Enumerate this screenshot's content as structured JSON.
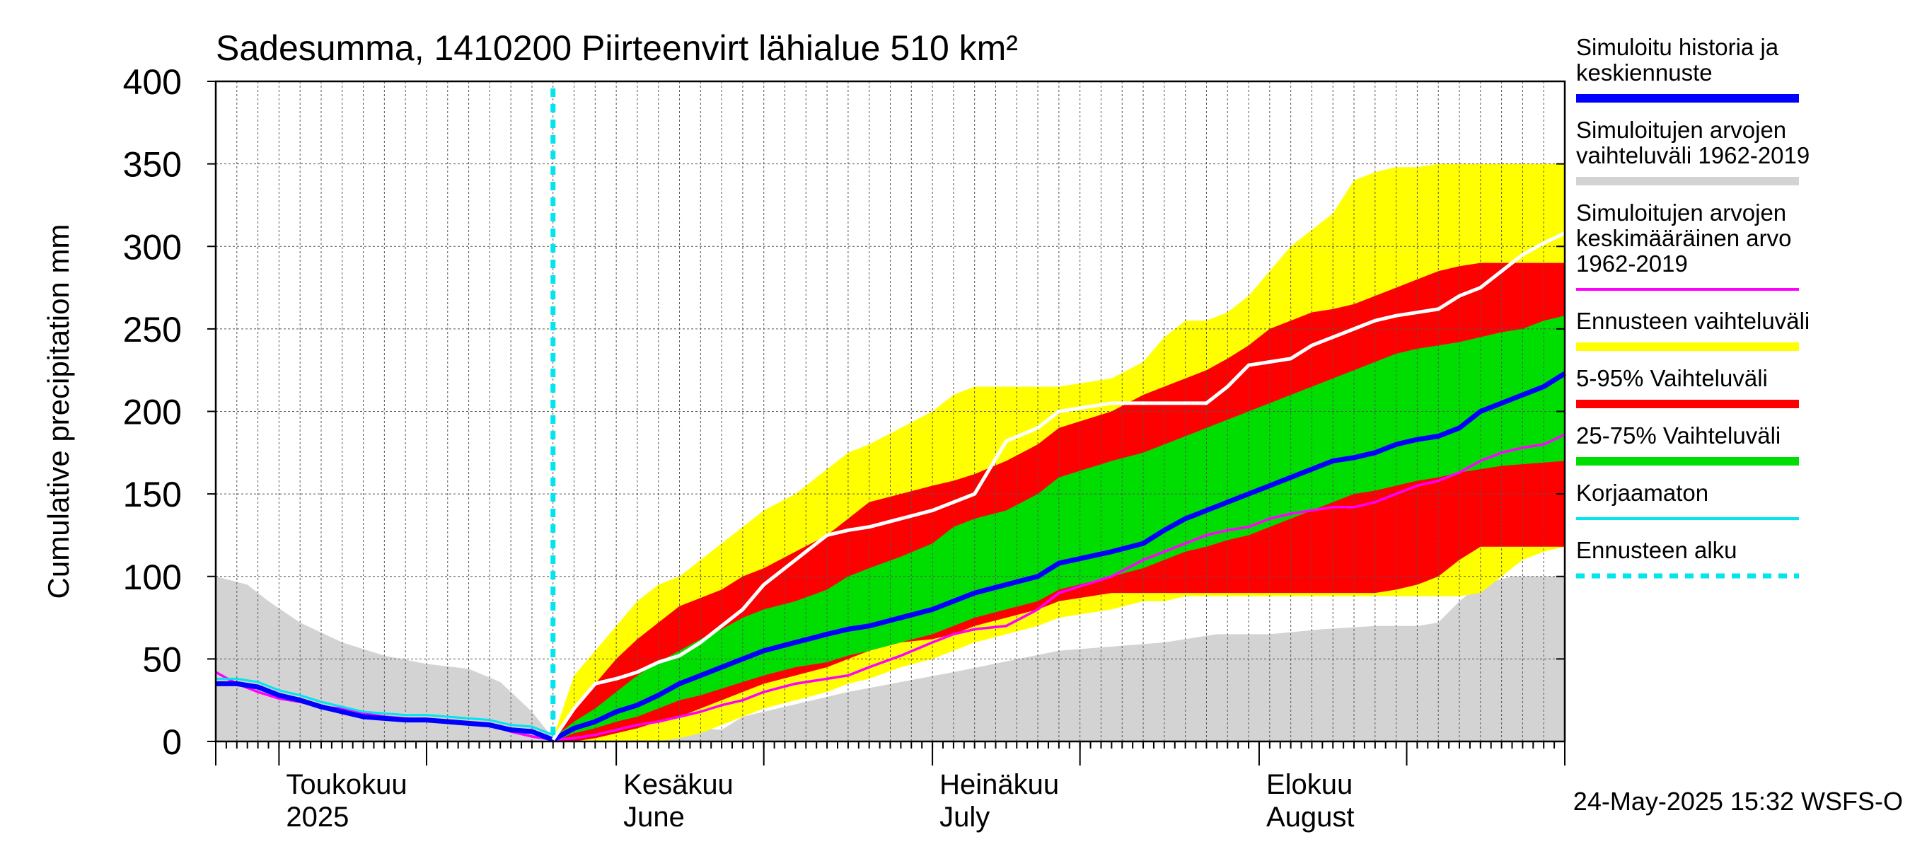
{
  "chart_data": {
    "type": "area",
    "title": "Sadesumma, 1410200 Piirteenvirt lähialue 510 km²",
    "ylabel": "Cumulative precipitation   mm",
    "xlabel": "",
    "ylim": [
      0,
      400
    ],
    "yticks": [
      0,
      50,
      100,
      150,
      200,
      250,
      300,
      350,
      400
    ],
    "x_range_days": [
      0,
      128
    ],
    "x_axis_note": "day 0 = 2025-04-25, day 128 = 2025-08-31",
    "forecast_start_day": 32,
    "month_labels": [
      {
        "day": 6,
        "fi": "Toukokuu",
        "en": "2025"
      },
      {
        "day": 38,
        "fi": "Kesäkuu",
        "en": "June"
      },
      {
        "day": 68,
        "fi": "Heinäkuu",
        "en": "July"
      },
      {
        "day": 99,
        "fi": "Elokuu",
        "en": "August"
      }
    ],
    "bands": [
      {
        "name": "Simuloitujen arvojen vaihteluväli 1962-2019",
        "color": "#d3d3d3",
        "x": [
          0,
          3,
          5,
          8,
          12,
          16,
          20,
          24,
          27,
          30,
          32,
          34,
          36,
          38,
          41,
          44,
          46,
          48,
          50,
          60,
          70,
          80,
          90,
          95,
          100,
          105,
          110,
          114,
          116,
          118,
          120,
          123,
          128
        ],
        "upper": [
          100,
          95,
          85,
          72,
          60,
          52,
          47,
          44,
          36,
          18,
          2,
          10,
          20,
          25,
          18,
          12,
          8,
          7,
          15,
          30,
          42,
          55,
          60,
          65,
          65,
          68,
          70,
          70,
          72,
          85,
          95,
          100,
          100
        ],
        "lower": [
          0,
          0,
          0,
          0,
          0,
          0,
          0,
          0,
          0,
          0,
          0,
          0,
          0,
          0,
          0,
          0,
          0,
          0,
          0,
          0,
          0,
          0,
          0,
          0,
          0,
          0,
          0,
          0,
          0,
          0,
          0,
          0,
          0
        ]
      },
      {
        "name": "Ennusteen vaihteluväli",
        "color": "#ffff00",
        "x": [
          32,
          34,
          36,
          38,
          40,
          42,
          44,
          46,
          48,
          50,
          52,
          55,
          58,
          60,
          62,
          65,
          68,
          70,
          72,
          75,
          78,
          80,
          85,
          88,
          90,
          92,
          94,
          96,
          98,
          100,
          102,
          104,
          106,
          108,
          110,
          112,
          114,
          116,
          118,
          120,
          122,
          124,
          126,
          128
        ],
        "upper": [
          2,
          40,
          55,
          70,
          85,
          95,
          100,
          110,
          120,
          130,
          140,
          150,
          165,
          175,
          180,
          190,
          200,
          210,
          215,
          215,
          215,
          215,
          220,
          230,
          245,
          255,
          255,
          260,
          270,
          285,
          300,
          310,
          320,
          340,
          345,
          348,
          348,
          350,
          350,
          350,
          350,
          350,
          350,
          350
        ],
        "lower": [
          0,
          0,
          0,
          0,
          0,
          0,
          2,
          5,
          10,
          15,
          20,
          25,
          30,
          35,
          38,
          45,
          50,
          55,
          60,
          65,
          70,
          75,
          80,
          85,
          85,
          88,
          88,
          88,
          88,
          88,
          88,
          88,
          88,
          88,
          88,
          88,
          88,
          88,
          88,
          90,
          100,
          110,
          115,
          118
        ]
      },
      {
        "name": "5-95% Vaihteluväli",
        "color": "#ff0000",
        "x": [
          32,
          34,
          36,
          38,
          40,
          42,
          44,
          46,
          48,
          50,
          52,
          55,
          58,
          60,
          62,
          65,
          68,
          70,
          72,
          75,
          78,
          80,
          85,
          88,
          90,
          92,
          94,
          96,
          98,
          100,
          102,
          104,
          106,
          108,
          110,
          112,
          114,
          116,
          118,
          120,
          122,
          124,
          126,
          128
        ],
        "upper": [
          2,
          20,
          35,
          50,
          62,
          72,
          82,
          87,
          92,
          100,
          105,
          115,
          125,
          135,
          145,
          150,
          155,
          158,
          162,
          170,
          180,
          190,
          200,
          210,
          215,
          220,
          225,
          232,
          240,
          250,
          255,
          260,
          262,
          265,
          270,
          275,
          280,
          285,
          288,
          290,
          290,
          290,
          290,
          290
        ],
        "lower": [
          0,
          0,
          2,
          5,
          8,
          12,
          15,
          20,
          25,
          30,
          35,
          40,
          45,
          50,
          55,
          60,
          62,
          65,
          70,
          75,
          80,
          85,
          90,
          90,
          90,
          90,
          90,
          90,
          90,
          90,
          90,
          90,
          90,
          90,
          90,
          92,
          95,
          100,
          110,
          118,
          118,
          118,
          118,
          118
        ]
      },
      {
        "name": "25-75% Vaihteluväli",
        "color": "#00dd00",
        "x": [
          32,
          34,
          36,
          38,
          40,
          42,
          44,
          46,
          48,
          50,
          52,
          55,
          58,
          60,
          62,
          65,
          68,
          70,
          72,
          75,
          78,
          80,
          85,
          88,
          90,
          92,
          94,
          96,
          98,
          100,
          102,
          104,
          106,
          108,
          110,
          112,
          114,
          116,
          118,
          120,
          122,
          124,
          126,
          128
        ],
        "upper": [
          2,
          12,
          20,
          30,
          40,
          48,
          55,
          62,
          68,
          75,
          80,
          85,
          92,
          100,
          105,
          112,
          120,
          130,
          135,
          140,
          150,
          160,
          170,
          175,
          180,
          185,
          190,
          195,
          200,
          205,
          210,
          215,
          220,
          225,
          230,
          235,
          238,
          240,
          242,
          245,
          248,
          250,
          255,
          258
        ],
        "lower": [
          0,
          5,
          8,
          12,
          15,
          20,
          25,
          28,
          32,
          36,
          40,
          45,
          48,
          52,
          55,
          60,
          65,
          70,
          75,
          80,
          85,
          92,
          100,
          105,
          110,
          115,
          118,
          122,
          125,
          130,
          135,
          140,
          145,
          150,
          152,
          155,
          158,
          160,
          163,
          165,
          167,
          168,
          169,
          170
        ]
      }
    ],
    "series": [
      {
        "name": "Simuloitujen arvojen keskimääräinen arvo 1962-2019",
        "color": "#ff00ff",
        "width": 3.5,
        "x": [
          0,
          2,
          4,
          6,
          8,
          10,
          12,
          14,
          16,
          18,
          20,
          22,
          24,
          26,
          28,
          30,
          32,
          34,
          36,
          38,
          40,
          42,
          44,
          46,
          48,
          50,
          52,
          55,
          58,
          60,
          62,
          65,
          68,
          70,
          72,
          75,
          78,
          80,
          85,
          88,
          90,
          92,
          94,
          96,
          98,
          100,
          102,
          104,
          106,
          108,
          110,
          112,
          114,
          116,
          118,
          120,
          122,
          124,
          126,
          128
        ],
        "y": [
          42,
          35,
          30,
          26,
          24,
          21,
          20,
          17,
          15,
          14,
          13,
          12,
          11,
          10,
          6,
          3,
          1,
          2,
          4,
          7,
          10,
          12,
          15,
          18,
          22,
          25,
          30,
          35,
          38,
          40,
          45,
          52,
          60,
          65,
          68,
          70,
          80,
          90,
          100,
          110,
          115,
          120,
          125,
          128,
          130,
          135,
          138,
          140,
          142,
          142,
          145,
          150,
          155,
          158,
          163,
          170,
          175,
          178,
          180,
          186
        ]
      },
      {
        "name": "Simuloitu historia ja keskiennuste",
        "color": "#0000ff",
        "width": 7,
        "x": [
          0,
          2,
          4,
          6,
          8,
          10,
          12,
          14,
          16,
          18,
          20,
          22,
          24,
          26,
          28,
          30,
          32,
          34,
          36,
          38,
          40,
          42,
          44,
          46,
          48,
          50,
          52,
          55,
          58,
          60,
          62,
          65,
          68,
          70,
          72,
          75,
          78,
          80,
          85,
          88,
          90,
          92,
          94,
          96,
          98,
          100,
          102,
          104,
          106,
          108,
          110,
          112,
          114,
          116,
          118,
          120,
          122,
          124,
          126,
          128
        ],
        "y": [
          35,
          35,
          33,
          28,
          25,
          21,
          18,
          15,
          14,
          13,
          13,
          12,
          11,
          10,
          7,
          6,
          1,
          8,
          12,
          18,
          22,
          28,
          35,
          40,
          45,
          50,
          55,
          60,
          65,
          68,
          70,
          75,
          80,
          85,
          90,
          95,
          100,
          108,
          115,
          120,
          128,
          135,
          140,
          145,
          150,
          155,
          160,
          165,
          170,
          172,
          175,
          180,
          183,
          185,
          190,
          200,
          205,
          210,
          215,
          223
        ]
      },
      {
        "name": "Korjaamaton",
        "color": "#00e5ee",
        "width": 3,
        "x": [
          0,
          2,
          4,
          6,
          8,
          10,
          12,
          14,
          16,
          18,
          20,
          22,
          24,
          26,
          28,
          30,
          32
        ],
        "y": [
          38,
          38,
          36,
          31,
          28,
          24,
          21,
          18,
          17,
          16,
          16,
          15,
          14,
          13,
          10,
          9,
          4
        ]
      },
      {
        "name": "Simuloitu historia (valkoinen)",
        "color": "#ffffff",
        "width": 5,
        "legend": false,
        "x": [
          32,
          34,
          36,
          38,
          40,
          42,
          44,
          46,
          48,
          50,
          52,
          55,
          58,
          60,
          62,
          65,
          68,
          70,
          72,
          75,
          78,
          80,
          85,
          88,
          90,
          92,
          94,
          96,
          98,
          100,
          102,
          104,
          106,
          108,
          110,
          112,
          114,
          116,
          118,
          120,
          122,
          124,
          126,
          128
        ],
        "y": [
          1,
          20,
          35,
          38,
          42,
          48,
          52,
          60,
          70,
          80,
          95,
          110,
          125,
          128,
          130,
          135,
          140,
          145,
          150,
          182,
          190,
          200,
          205,
          205,
          205,
          205,
          205,
          215,
          228,
          230,
          232,
          240,
          245,
          250,
          255,
          258,
          260,
          262,
          270,
          275,
          285,
          295,
          302,
          308
        ]
      }
    ],
    "legend": [
      {
        "lines": [
          "Simuloitu historia ja",
          "keskiennuste"
        ],
        "color": "#0000ff",
        "style": "solid"
      },
      {
        "lines": [
          "Simuloitujen arvojen",
          "vaihteluväli 1962-2019"
        ],
        "color": "#d3d3d3",
        "style": "solid"
      },
      {
        "lines": [
          "Simuloitujen arvojen",
          "keskimääräinen arvo",
          "   1962-2019"
        ],
        "color": "#ff00ff",
        "style": "thin"
      },
      {
        "lines": [
          "Ennusteen vaihteluväli"
        ],
        "color": "#ffff00",
        "style": "solid"
      },
      {
        "lines": [
          "5-95% Vaihteluväli"
        ],
        "color": "#ff0000",
        "style": "solid"
      },
      {
        "lines": [
          "25-75% Vaihteluväli"
        ],
        "color": "#00dd00",
        "style": "solid"
      },
      {
        "lines": [
          "Korjaamaton"
        ],
        "color": "#00e5ee",
        "style": "thin"
      },
      {
        "lines": [
          "Ennusteen alku"
        ],
        "color": "#00e5ee",
        "style": "dashed"
      }
    ],
    "footer": "24-May-2025 15:32 WSFS-O"
  }
}
